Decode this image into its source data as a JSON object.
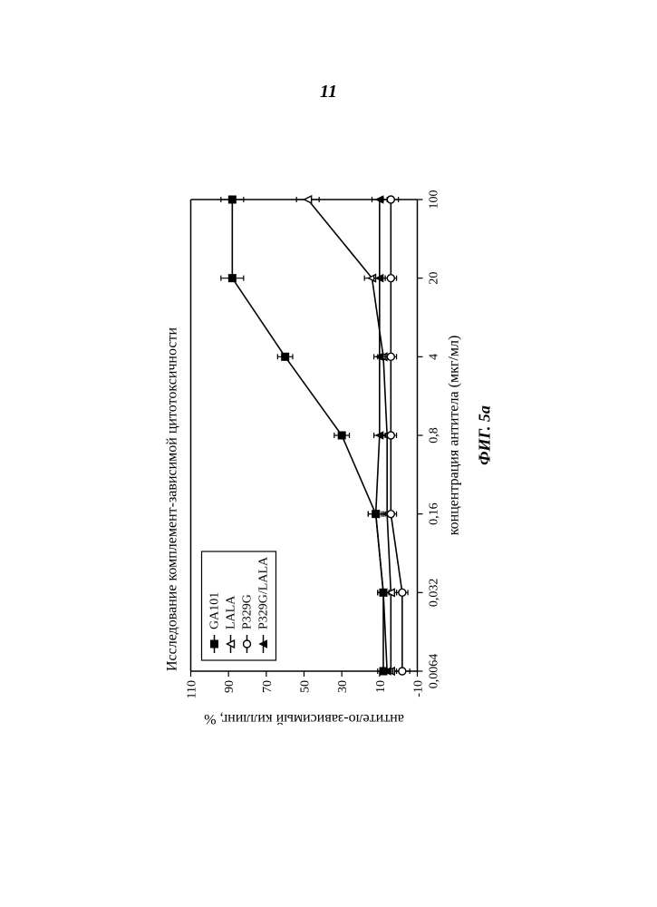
{
  "page_number": "11",
  "chart": {
    "type": "line",
    "title": "Исследование комплемент-зависимой цитотоксичности",
    "title_fontsize": 16,
    "xlabel": "концентрация антитела (мкг/мл)",
    "ylabel": "антитело-зависимый киллинг, %",
    "label_fontsize": 16,
    "figure_caption": "ФИГ. 5а",
    "background_color": "#ffffff",
    "axis_color": "#000000",
    "line_width": 1.6,
    "marker_size": 8,
    "error_cap": 6,
    "x_ticks": [
      "0,0064",
      "0,032",
      "0,16",
      "0,8",
      "4",
      "20",
      "100"
    ],
    "y_ticks": [
      -10,
      10,
      30,
      50,
      70,
      90,
      110
    ],
    "xlim": [
      0,
      6
    ],
    "ylim": [
      -10,
      110
    ],
    "legend": {
      "position": "inside-top-left",
      "border_color": "#000000",
      "items": [
        {
          "label": "GA101",
          "marker": "filled-square",
          "color": "#000000"
        },
        {
          "label": "LALA",
          "marker": "open-triangle",
          "color": "#000000"
        },
        {
          "label": "P329G",
          "marker": "open-circle",
          "color": "#000000"
        },
        {
          "label": "P329G/LALA",
          "marker": "filled-triangle",
          "color": "#000000"
        }
      ]
    },
    "series": [
      {
        "name": "GA101",
        "marker": "filled-square",
        "color": "#000000",
        "data": [
          {
            "x": 0,
            "y": 8,
            "err": 3
          },
          {
            "x": 1,
            "y": 8,
            "err": 3
          },
          {
            "x": 2,
            "y": 12,
            "err": 4
          },
          {
            "x": 3,
            "y": 30,
            "err": 4
          },
          {
            "x": 4,
            "y": 60,
            "err": 4
          },
          {
            "x": 5,
            "y": 88,
            "err": 6
          },
          {
            "x": 6,
            "y": 88,
            "err": 6
          }
        ]
      },
      {
        "name": "LALA",
        "marker": "open-triangle",
        "color": "#000000",
        "data": [
          {
            "x": 0,
            "y": 4,
            "err": 3
          },
          {
            "x": 1,
            "y": 4,
            "err": 3
          },
          {
            "x": 2,
            "y": 6,
            "err": 3
          },
          {
            "x": 3,
            "y": 6,
            "err": 3
          },
          {
            "x": 4,
            "y": 8,
            "err": 3
          },
          {
            "x": 5,
            "y": 14,
            "err": 4
          },
          {
            "x": 6,
            "y": 48,
            "err": 6
          }
        ]
      },
      {
        "name": "P329G",
        "marker": "open-circle",
        "color": "#000000",
        "data": [
          {
            "x": 0,
            "y": -2,
            "err": 4
          },
          {
            "x": 1,
            "y": -2,
            "err": 3
          },
          {
            "x": 2,
            "y": 4,
            "err": 3
          },
          {
            "x": 3,
            "y": 4,
            "err": 3
          },
          {
            "x": 4,
            "y": 4,
            "err": 3
          },
          {
            "x": 5,
            "y": 4,
            "err": 3
          },
          {
            "x": 6,
            "y": 4,
            "err": 4
          }
        ]
      },
      {
        "name": "P329G/LALA",
        "marker": "filled-triangle",
        "color": "#000000",
        "data": [
          {
            "x": 0,
            "y": 6,
            "err": 3
          },
          {
            "x": 1,
            "y": 8,
            "err": 3
          },
          {
            "x": 2,
            "y": 12,
            "err": 4
          },
          {
            "x": 3,
            "y": 10,
            "err": 3
          },
          {
            "x": 4,
            "y": 10,
            "err": 3
          },
          {
            "x": 5,
            "y": 10,
            "err": 3
          },
          {
            "x": 6,
            "y": 10,
            "err": 4
          }
        ]
      }
    ]
  }
}
